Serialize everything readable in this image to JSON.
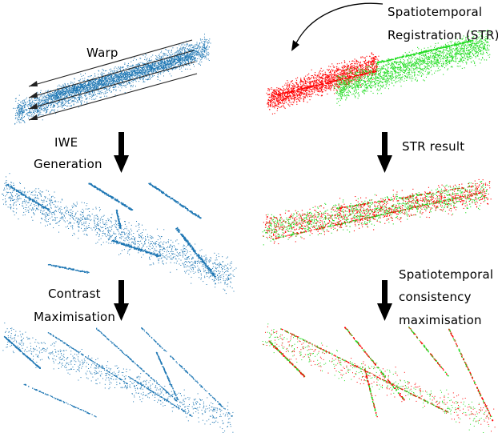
{
  "labels": {
    "warp": "Warp",
    "str_title_line1": "Spatiotemporal",
    "str_title_line2": "Registration (STR)",
    "iwe_line1": "IWE",
    "iwe_line2": "Generation",
    "str_result": "STR result",
    "contrast_line1": "Contrast",
    "contrast_line2": "Maximisation",
    "stc_line1": "Spatiotemporal",
    "stc_line2": "consistency",
    "stc_line3": "maximisation"
  },
  "colors": {
    "blue": "#1f77b4",
    "red": "#ff0000",
    "green": "#22dd22",
    "arrow": "#000000"
  }
}
